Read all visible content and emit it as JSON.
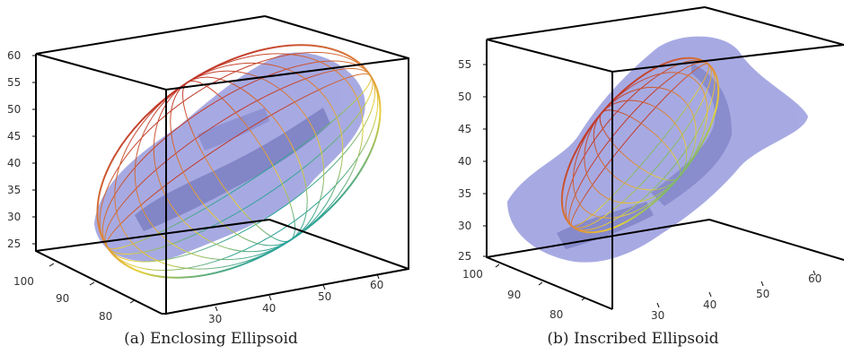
{
  "figure": {
    "panels": [
      {
        "caption": "(a) Enclosing Ellipsoid",
        "z_ticks": [
          "60",
          "55",
          "50",
          "45",
          "40",
          "35",
          "30",
          "25"
        ],
        "y_ticks": [
          "100",
          "90",
          "80"
        ],
        "x_ticks": [
          "30",
          "40",
          "50",
          "60"
        ]
      },
      {
        "caption": "(b) Inscribed Ellipsoid",
        "z_ticks": [
          "55",
          "50",
          "45",
          "40",
          "35",
          "30",
          "25"
        ],
        "y_ticks": [
          "100",
          "90",
          "80"
        ],
        "x_ticks": [
          "30",
          "40",
          "50",
          "60"
        ]
      }
    ]
  },
  "colors": {
    "wireframe_top": "#c0392b",
    "wireframe_mid": "#e6d23a",
    "wireframe_bottom": "#2aa198",
    "volume_fill": "#8f93db",
    "volume_dark": "#4a4fa8",
    "box_line": "#000000"
  }
}
